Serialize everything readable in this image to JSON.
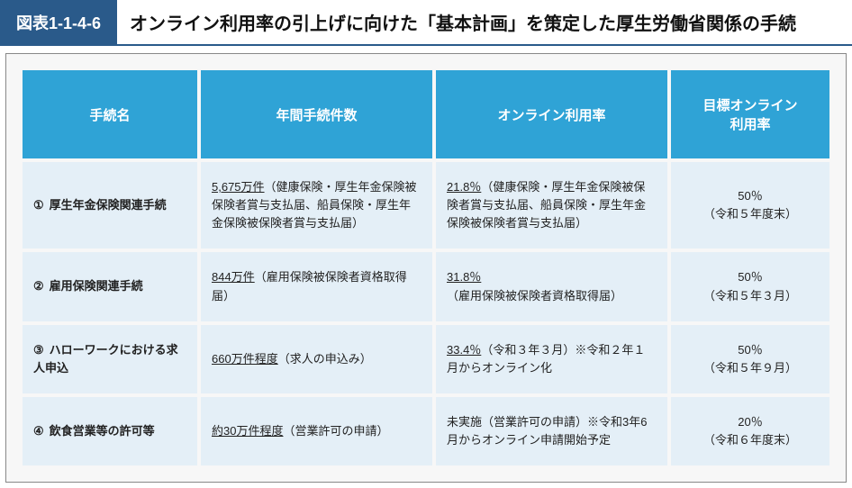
{
  "figure": {
    "number": "図表1-1-4-6",
    "title": "オンライン利用率の引上げに向けた「基本計画」を策定した厚生労働省関係の手続"
  },
  "headers": {
    "name": "手続名",
    "count": "年間手続件数",
    "rate": "オンライン利用率",
    "target": "目標オンライン\n利用率"
  },
  "rows": [
    {
      "num": "①",
      "name": "厚生年金保険関連手続",
      "count_u": "5,675万件",
      "count_rest": "（健康保険・厚生年金保険被保険者賞与支払届、船員保険・厚生年金保険被保険者賞与支払届）",
      "rate_u": "21.8％",
      "rate_rest": "（健康保険・厚生年金保険被保険者賞与支払届、船員保険・厚生年金保険被保険者賞与支払届）",
      "target": "50％\n（令和５年度末）"
    },
    {
      "num": "②",
      "name": "雇用保険関連手続",
      "count_u": "844万件",
      "count_rest": "（雇用保険被保険者資格取得届）",
      "rate_u": "31.8％",
      "rate_rest": "（雇用保険被保険者資格取得届）",
      "target": "50％\n（令和５年３月）"
    },
    {
      "num": "③",
      "name": "ハローワークにおける求人申込",
      "count_u": "660万件程度",
      "count_rest": "（求人の申込み）",
      "rate_u": "33.4％",
      "rate_rest": "（令和３年３月）※令和２年１月からオンライン化",
      "target": "50％\n（令和５年９月）"
    },
    {
      "num": "④",
      "name": "飲食営業等の許可等",
      "count_u": "約30万件程度",
      "count_rest": "（営業許可の申請）",
      "rate_u": "",
      "rate_rest": "未実施（営業許可の申請）※令和3年6月からオンライン申請開始予定",
      "target": "20％\n（令和６年度末）"
    }
  ],
  "colors": {
    "header_bg": "#2a5a8a",
    "table_header_bg": "#2fa3d6",
    "cell_bg": "#e4eff7",
    "wrap_bg": "#f7f7f7"
  }
}
